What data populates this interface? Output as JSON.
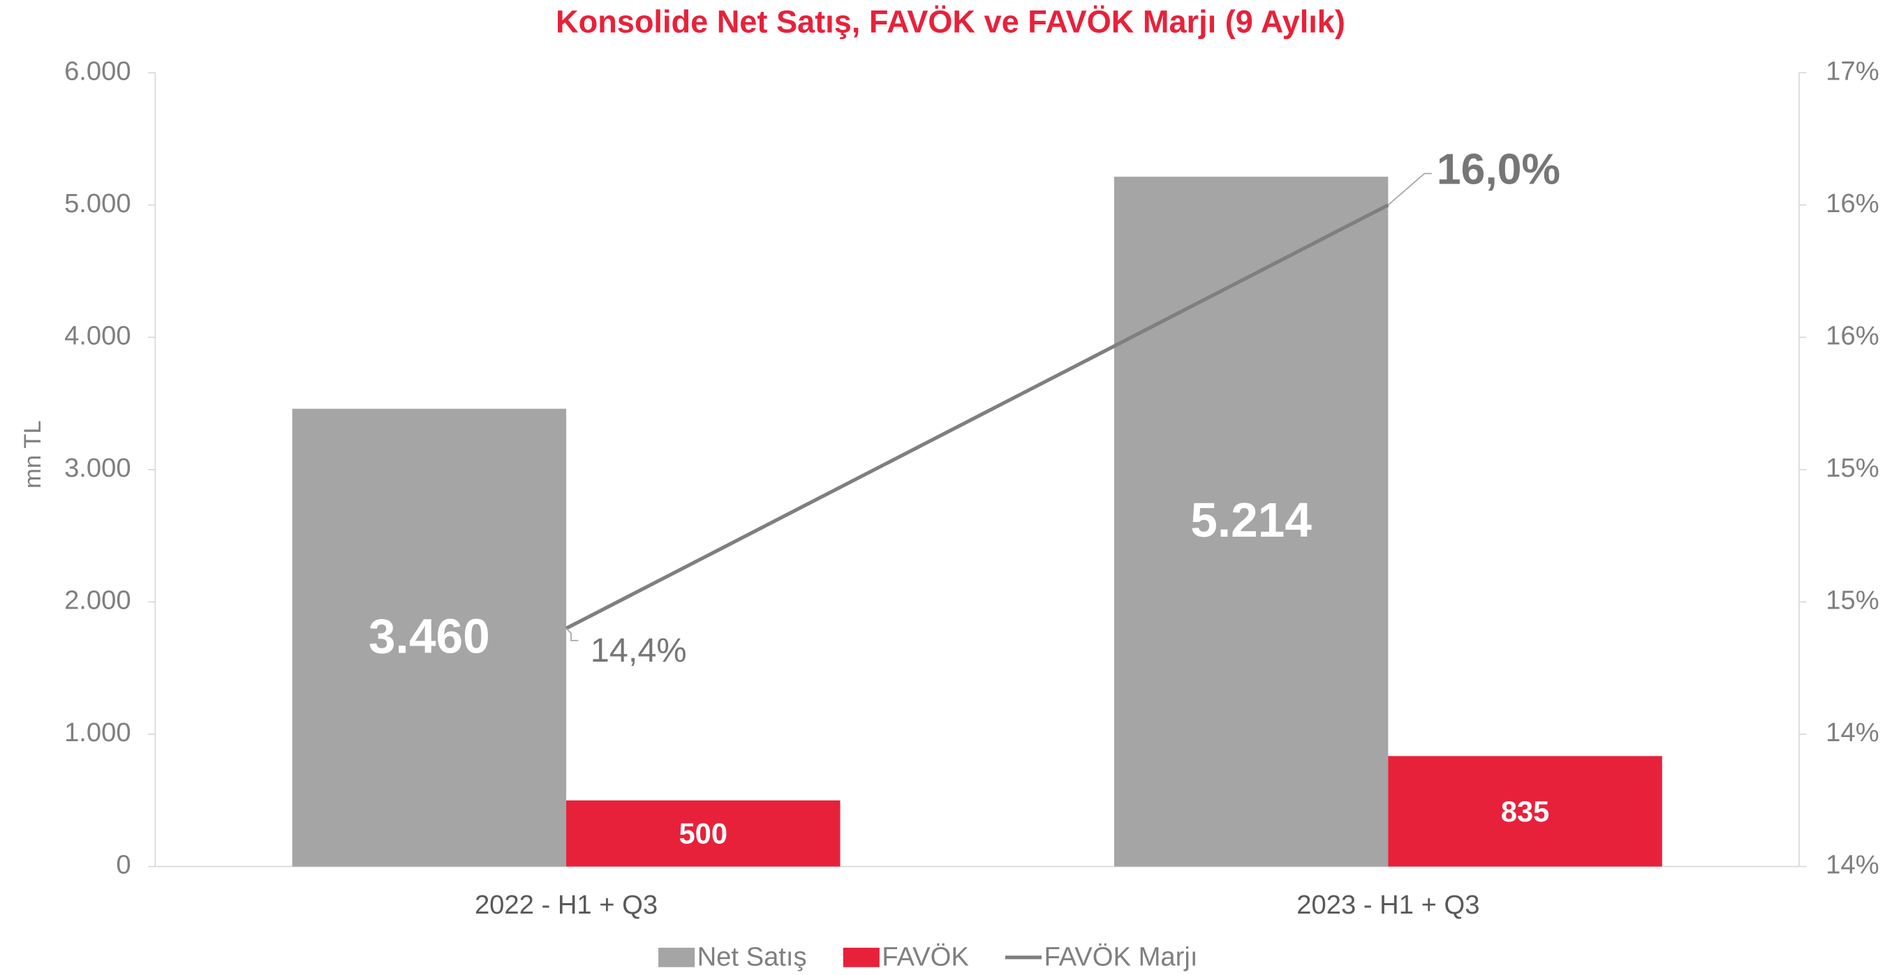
{
  "chart_data": {
    "type": "bar",
    "title": "Konsolide Net Satış, FAVÖK ve FAVÖK Marjı (9 Aylık)",
    "y_label": "mn TL",
    "categories": [
      "2022 - H1 + Q3",
      "2023 - H1 + Q3"
    ],
    "series": [
      {
        "name": "Net Satış",
        "type": "bar",
        "color": "#a5a5a5",
        "values": [
          3460,
          5214
        ],
        "value_labels": [
          "3.460",
          "5.214"
        ]
      },
      {
        "name": "FAVÖK",
        "type": "bar",
        "color": "#e8213a",
        "values": [
          500,
          835
        ]
      },
      {
        "name": "FAVÖK Marjı",
        "type": "line",
        "axis": "y2",
        "color": "#7f7f7f",
        "values": [
          14.4,
          16.0
        ],
        "value_labels": [
          "14,4%",
          "16,0%"
        ]
      }
    ],
    "ylim": [
      0,
      6000
    ],
    "yticks": [
      0,
      {
        "value": 1000,
        "label": "1.000"
      },
      {
        "value": 2000,
        "label": "2.000"
      },
      {
        "value": 3000,
        "label": "3.000"
      },
      {
        "value": 4000,
        "label": "4.000"
      },
      {
        "value": 5000,
        "label": "5.000"
      },
      {
        "value": 6000,
        "label": "6.000"
      }
    ],
    "y2lim": [
      13.5,
      16.5
    ],
    "y2ticks": [
      {
        "value": 13.5,
        "label": "14%"
      },
      {
        "value": 14.0,
        "label": "14%"
      },
      {
        "value": 14.5,
        "label": "15%"
      },
      {
        "value": 15.0,
        "label": "15%"
      },
      {
        "value": 15.5,
        "label": "16%"
      },
      {
        "value": 16.0,
        "label": "16%"
      },
      {
        "value": 16.5,
        "label": "17%"
      }
    ],
    "legend": "bottom",
    "grid": false
  }
}
